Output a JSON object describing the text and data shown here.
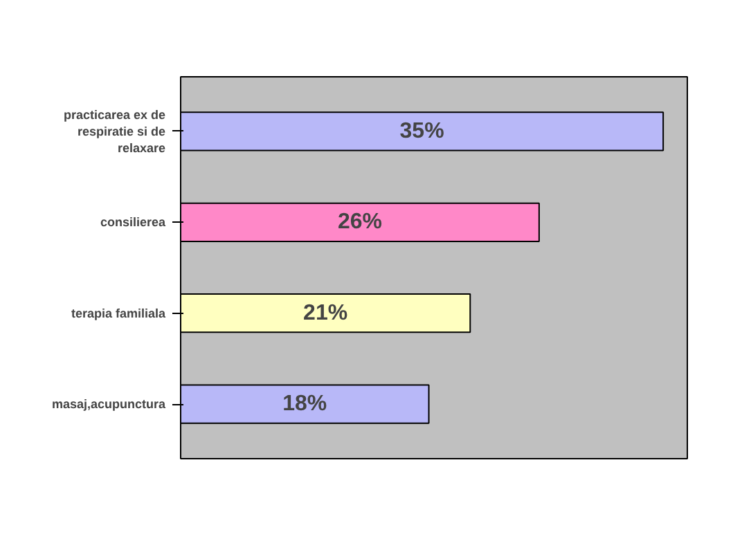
{
  "chart_data": {
    "type": "bar",
    "orientation": "horizontal",
    "categories": [
      "practicarea ex de respiratie si de relaxare",
      "consilierea",
      "terapia familiala",
      "masaj,acupunctura"
    ],
    "values": [
      35,
      26,
      21,
      18
    ],
    "value_labels": [
      "35%",
      "26%",
      "21%",
      "18%"
    ],
    "colors": [
      "#b8b8f8",
      "#ff88c8",
      "#ffffc0",
      "#b8b8f8"
    ],
    "grid": false
  }
}
